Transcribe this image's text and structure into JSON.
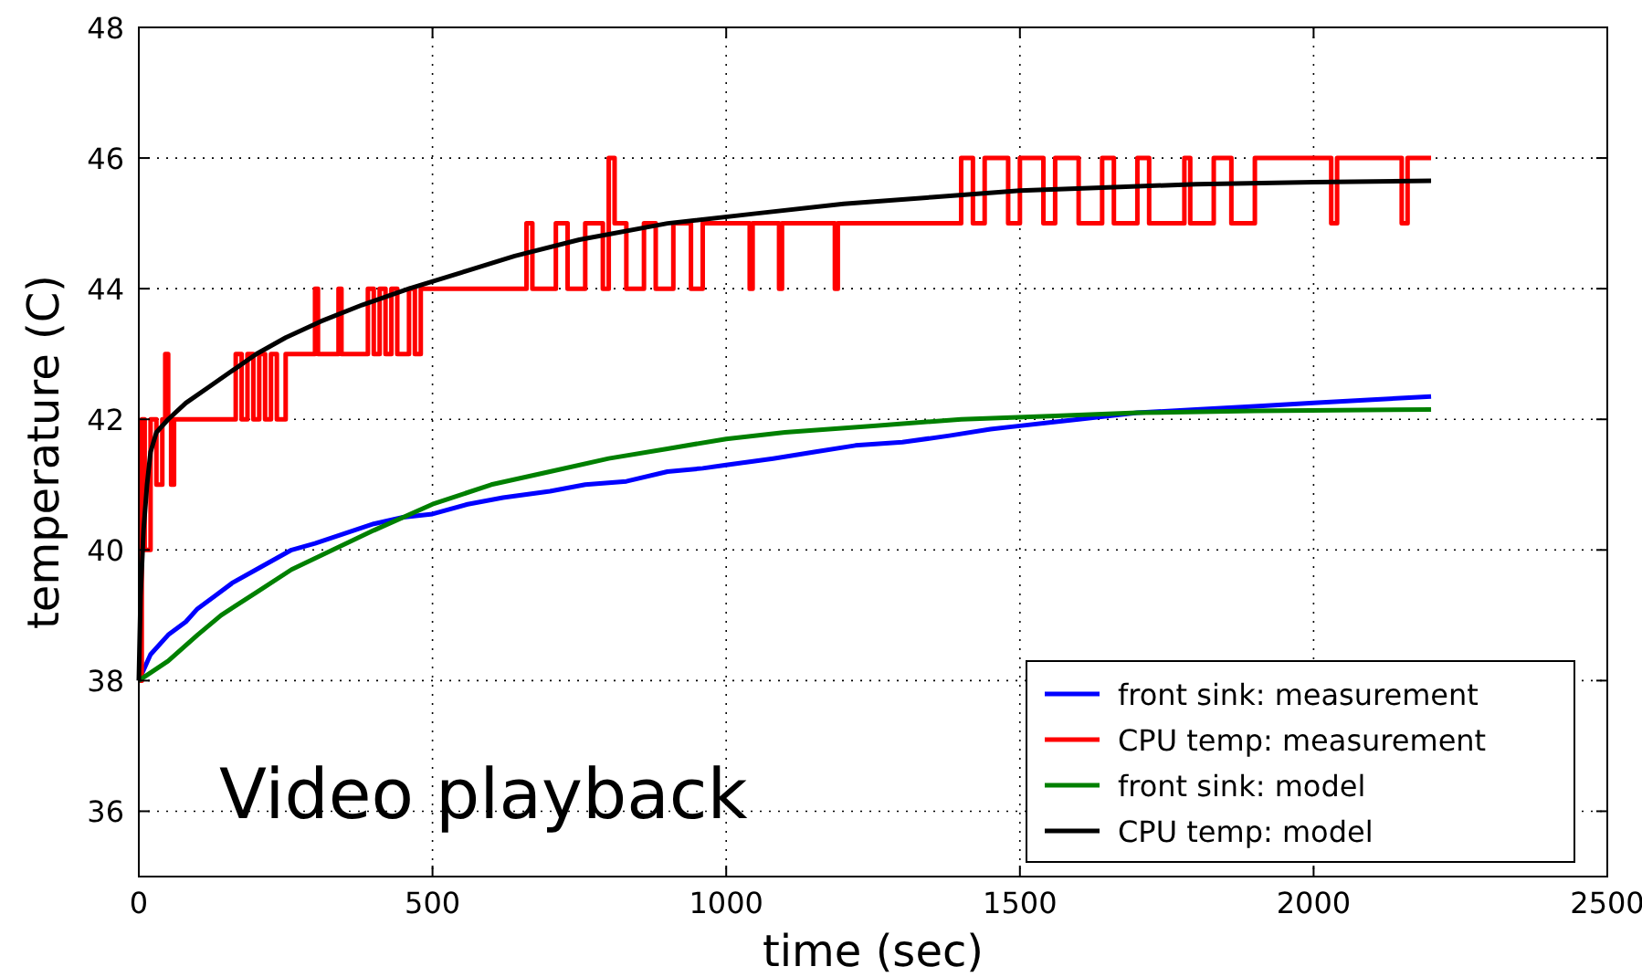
{
  "chart_data": {
    "type": "line",
    "xlabel": "time (sec)",
    "ylabel": "temperature (C)",
    "xlim": [
      0,
      2500
    ],
    "xticks": [
      0,
      500,
      1000,
      1500,
      2000,
      2500
    ],
    "ylim": [
      35,
      48
    ],
    "yticks": [
      36,
      38,
      40,
      42,
      44,
      46,
      48
    ],
    "grid": true,
    "legend": "bottom right",
    "line_style": "solid",
    "marker": "none",
    "annotations": [
      "Video playback"
    ],
    "series": [
      {
        "name": "front sink: measurement",
        "color": "#0000ff",
        "x": [
          0,
          20,
          50,
          80,
          100,
          130,
          160,
          200,
          260,
          300,
          350,
          400,
          450,
          500,
          560,
          620,
          700,
          760,
          830,
          900,
          960,
          1000,
          1080,
          1150,
          1220,
          1300,
          1380,
          1450,
          1500,
          1550,
          1600,
          1700,
          1800,
          1900,
          2000,
          2100,
          2200
        ],
        "values": [
          38,
          38.4,
          38.7,
          38.9,
          39.1,
          39.3,
          39.5,
          39.7,
          40,
          40.1,
          40.25,
          40.4,
          40.5,
          40.55,
          40.7,
          40.8,
          40.9,
          41,
          41.05,
          41.2,
          41.25,
          41.3,
          41.4,
          41.5,
          41.6,
          41.65,
          41.75,
          41.85,
          41.9,
          41.95,
          42,
          42.1,
          42.15,
          42.2,
          42.25,
          42.3,
          42.35
        ]
      },
      {
        "name": "CPU temp: measurement",
        "color": "#ff0000",
        "x": [
          0,
          5,
          5,
          10,
          10,
          20,
          20,
          30,
          30,
          40,
          40,
          45,
          45,
          50,
          50,
          55,
          55,
          60,
          60,
          165,
          165,
          175,
          175,
          185,
          185,
          195,
          195,
          205,
          205,
          215,
          215,
          225,
          225,
          235,
          235,
          250,
          250,
          300,
          300,
          305,
          305,
          340,
          340,
          345,
          345,
          390,
          390,
          400,
          400,
          410,
          410,
          420,
          420,
          430,
          430,
          440,
          440,
          460,
          460,
          470,
          470,
          480,
          480,
          660,
          660,
          670,
          670,
          710,
          710,
          730,
          730,
          760,
          760,
          790,
          790,
          800,
          800,
          810,
          810,
          830,
          830,
          860,
          860,
          880,
          880,
          910,
          910,
          940,
          940,
          960,
          960,
          1040,
          1040,
          1045,
          1045,
          1090,
          1090,
          1095,
          1095,
          1185,
          1185,
          1190,
          1190,
          1400,
          1400,
          1420,
          1420,
          1440,
          1440,
          1480,
          1480,
          1500,
          1500,
          1540,
          1540,
          1560,
          1560,
          1600,
          1600,
          1640,
          1640,
          1660,
          1660,
          1700,
          1700,
          1720,
          1720,
          1780,
          1780,
          1790,
          1790,
          1830,
          1830,
          1860,
          1860,
          1900,
          1900,
          2030,
          2030,
          2040,
          2040,
          2150,
          2150,
          2160,
          2160,
          2200
        ],
        "values": [
          38,
          38,
          42,
          42,
          40,
          40,
          42,
          42,
          41,
          41,
          42,
          42,
          43,
          43,
          42,
          42,
          41,
          41,
          42,
          42,
          43,
          43,
          42,
          42,
          43,
          43,
          42,
          42,
          43,
          43,
          42,
          42,
          43,
          43,
          42,
          42,
          43,
          43,
          44,
          44,
          43,
          43,
          44,
          44,
          43,
          43,
          44,
          44,
          43,
          43,
          44,
          44,
          43,
          43,
          44,
          44,
          43,
          43,
          44,
          44,
          43,
          43,
          44,
          44,
          45,
          45,
          44,
          44,
          45,
          45,
          44,
          44,
          45,
          45,
          44,
          44,
          46,
          46,
          45,
          45,
          44,
          44,
          45,
          45,
          44,
          44,
          45,
          45,
          44,
          44,
          45,
          45,
          44,
          44,
          45,
          45,
          44,
          44,
          45,
          45,
          44,
          44,
          45,
          45,
          46,
          46,
          45,
          45,
          46,
          46,
          45,
          45,
          46,
          46,
          45,
          45,
          46,
          46,
          45,
          45,
          46,
          46,
          45,
          45,
          46,
          46,
          45,
          45,
          46,
          46,
          45,
          45,
          46,
          46,
          45,
          45,
          46,
          46,
          45,
          45,
          46,
          46,
          45,
          45,
          46,
          46
        ]
      },
      {
        "name": "front sink: model",
        "color": "#008000",
        "x": [
          0,
          50,
          100,
          140,
          200,
          260,
          330,
          400,
          500,
          600,
          700,
          800,
          900,
          1000,
          1100,
          1250,
          1400,
          1550,
          1700,
          1900,
          2200
        ],
        "values": [
          38,
          38.3,
          38.7,
          39,
          39.35,
          39.7,
          40,
          40.3,
          40.7,
          41,
          41.2,
          41.4,
          41.55,
          41.7,
          41.8,
          41.9,
          42,
          42.05,
          42.1,
          42.13,
          42.15
        ]
      },
      {
        "name": "CPU temp: model",
        "color": "#000000",
        "x": [
          0,
          3,
          8,
          14,
          20,
          30,
          50,
          80,
          120,
          160,
          200,
          250,
          310,
          380,
          460,
          550,
          640,
          750,
          900,
          1050,
          1200,
          1350,
          1500,
          1650,
          1800,
          2000,
          2200
        ],
        "values": [
          38,
          39.3,
          40.3,
          41,
          41.5,
          41.8,
          42,
          42.25,
          42.5,
          42.75,
          43,
          43.25,
          43.5,
          43.75,
          44,
          44.25,
          44.5,
          44.75,
          45,
          45.15,
          45.3,
          45.4,
          45.5,
          45.55,
          45.6,
          45.63,
          45.65
        ]
      }
    ]
  }
}
